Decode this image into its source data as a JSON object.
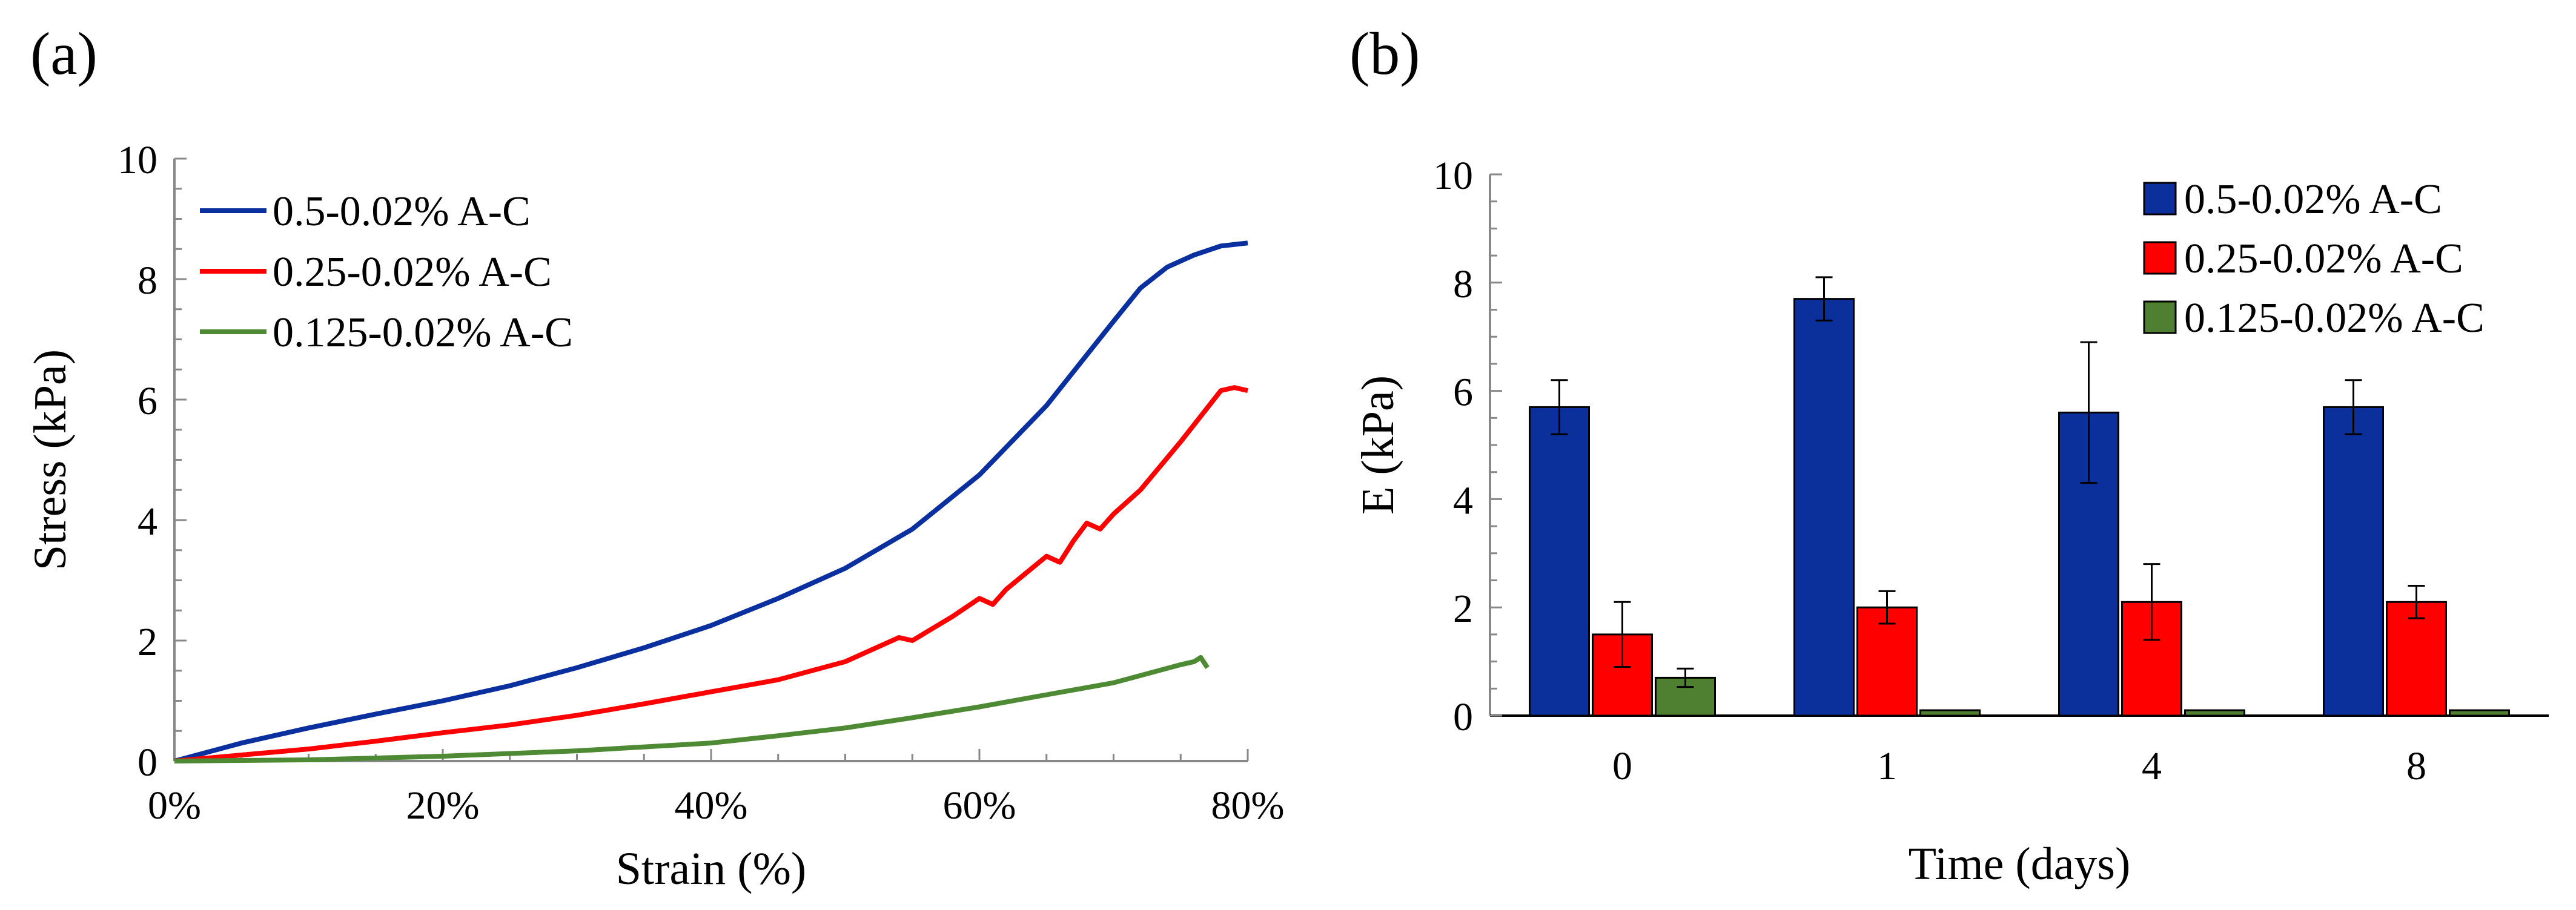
{
  "panels": {
    "a_label": "(a)",
    "b_label": "(b)"
  },
  "colors": {
    "blue": "#0a2f9e",
    "red": "#ff0000",
    "green": "#4e8a33",
    "blue_bar": "#0b2f9b",
    "red_bar": "#ff0000",
    "green_bar": "#4f7f31"
  },
  "chart_data": [
    {
      "type": "line",
      "panel": "a",
      "title": "",
      "xlabel": "Strain (%)",
      "ylabel": "Stress (kPa)",
      "xlim": [
        0,
        80
      ],
      "ylim": [
        0,
        10
      ],
      "xticks": [
        0,
        20,
        40,
        60,
        80
      ],
      "xtick_labels": [
        "0%",
        "20%",
        "40%",
        "60%",
        "80%"
      ],
      "yticks": [
        0,
        2,
        4,
        6,
        8,
        10
      ],
      "ytick_labels": [
        "0",
        "2",
        "4",
        "6",
        "8",
        "10"
      ],
      "legend_position": "top-left",
      "series": [
        {
          "name": "0.5-0.02% A-C",
          "color": "#0a2f9e",
          "x": [
            0,
            5,
            10,
            15,
            20,
            25,
            30,
            35,
            40,
            45,
            50,
            55,
            60,
            65,
            70,
            72,
            74,
            76,
            78,
            80
          ],
          "y": [
            0,
            0.3,
            0.55,
            0.78,
            1.0,
            1.25,
            1.55,
            1.88,
            2.25,
            2.7,
            3.2,
            3.85,
            4.75,
            5.9,
            7.3,
            7.85,
            8.2,
            8.4,
            8.55,
            8.6
          ]
        },
        {
          "name": "0.25-0.02% A-C",
          "color": "#ff0000",
          "x": [
            0,
            5,
            10,
            15,
            20,
            25,
            30,
            35,
            40,
            45,
            50,
            54,
            55,
            58,
            60,
            61,
            62,
            65,
            66,
            67,
            68,
            69,
            70,
            72,
            75,
            78,
            79,
            80
          ],
          "y": [
            0,
            0.1,
            0.2,
            0.33,
            0.47,
            0.6,
            0.76,
            0.95,
            1.15,
            1.35,
            1.65,
            2.05,
            2.0,
            2.4,
            2.7,
            2.6,
            2.85,
            3.4,
            3.3,
            3.65,
            3.95,
            3.85,
            4.1,
            4.5,
            5.3,
            6.15,
            6.2,
            6.15
          ]
        },
        {
          "name": "0.125-0.02% A-C",
          "color": "#4e8a33",
          "x": [
            0,
            10,
            20,
            30,
            40,
            45,
            50,
            55,
            60,
            65,
            70,
            75,
            76,
            76.5,
            77
          ],
          "y": [
            0,
            0.02,
            0.08,
            0.17,
            0.3,
            0.42,
            0.55,
            0.72,
            0.9,
            1.1,
            1.3,
            1.6,
            1.65,
            1.72,
            1.55
          ]
        }
      ]
    },
    {
      "type": "bar",
      "panel": "b",
      "title": "",
      "xlabel": "Time (days)",
      "ylabel": "E (kPa)",
      "ylim": [
        0,
        10
      ],
      "yticks": [
        0,
        2,
        4,
        6,
        8,
        10
      ],
      "ytick_labels": [
        "0",
        "2",
        "4",
        "6",
        "8",
        "10"
      ],
      "categories": [
        "0",
        "1",
        "4",
        "8"
      ],
      "legend_position": "top-right",
      "series": [
        {
          "name": "0.5-0.02% A-C",
          "color": "#0b2f9b",
          "values": [
            5.7,
            7.7,
            5.6,
            5.7
          ],
          "errors": [
            0.5,
            0.4,
            1.3,
            0.5
          ]
        },
        {
          "name": "0.25-0.02% A-C",
          "color": "#ff0000",
          "values": [
            1.5,
            2.0,
            2.1,
            2.1
          ],
          "errors": [
            0.6,
            0.3,
            0.7,
            0.3
          ]
        },
        {
          "name": "0.125-0.02% A-C",
          "color": "#4f7f31",
          "values": [
            0.7,
            0.1,
            0.1,
            0.1
          ],
          "errors": [
            0.17,
            0,
            0,
            0
          ]
        }
      ]
    }
  ]
}
